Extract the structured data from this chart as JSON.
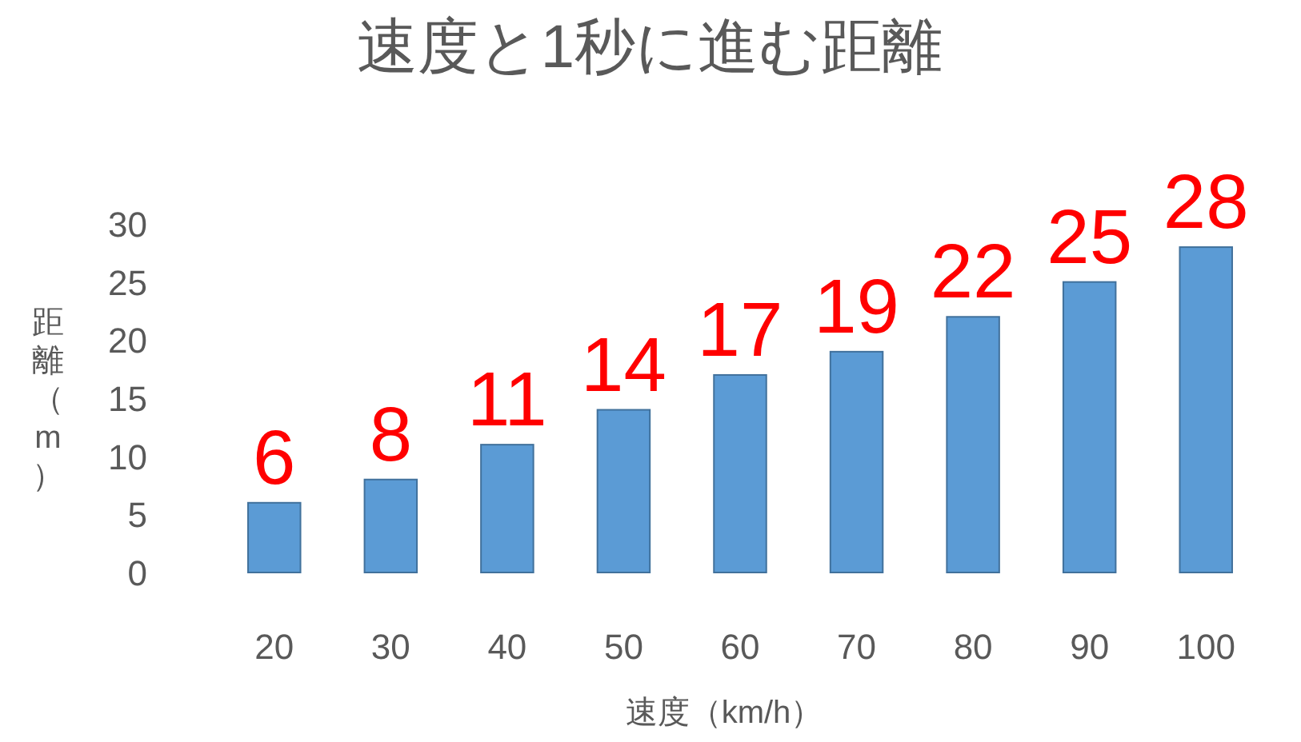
{
  "chart_data": {
    "type": "bar",
    "title": "速度と1秒に進む距離",
    "xlabel": "速度（km/h）",
    "ylabel": "距離（m）",
    "categories": [
      "20",
      "30",
      "40",
      "50",
      "60",
      "70",
      "80",
      "90",
      "100"
    ],
    "values": [
      6,
      8,
      11,
      14,
      17,
      19,
      22,
      25,
      28
    ],
    "color": "#5b9bd5",
    "ylim": [
      0,
      30
    ],
    "yticks": [
      0,
      5,
      10,
      15,
      20,
      25,
      30
    ],
    "data_labels": true
  }
}
